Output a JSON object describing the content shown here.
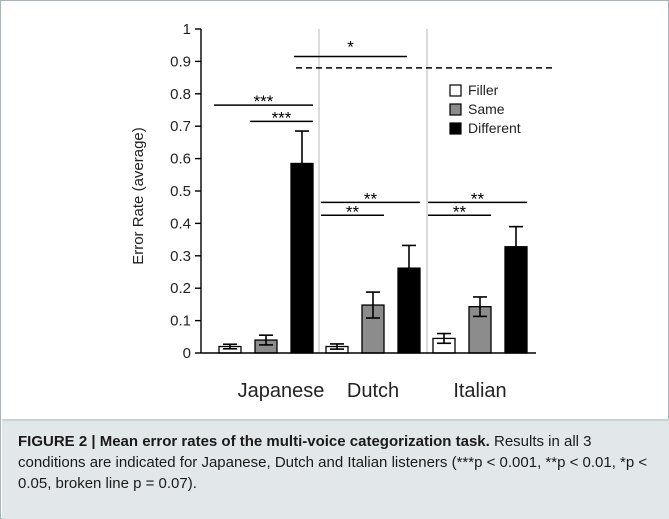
{
  "chart_data": {
    "type": "bar",
    "categories": [
      "Japanese",
      "Dutch",
      "Italian"
    ],
    "series": [
      {
        "name": "Filler",
        "values": [
          0.02,
          0.02,
          0.045
        ],
        "errors": [
          0.007,
          0.008,
          0.015
        ],
        "color": "#ffffff"
      },
      {
        "name": "Same",
        "values": [
          0.04,
          0.148,
          0.143
        ],
        "errors": [
          0.015,
          0.04,
          0.03
        ],
        "color": "#8c8c8c"
      },
      {
        "name": "Different",
        "values": [
          0.585,
          0.262,
          0.328
        ],
        "errors": [
          0.1,
          0.07,
          0.062
        ],
        "color": "#000000"
      }
    ],
    "ylabel": "Error Rate (average)",
    "xlabel": "",
    "ylim": [
      0,
      1
    ],
    "yticks": [
      0,
      0.1,
      0.2,
      0.3,
      0.4,
      0.5,
      0.6,
      0.7,
      0.8,
      0.9,
      1
    ],
    "ytick_labels": [
      "0",
      "0.1",
      "0.2",
      "0.3",
      "0.4",
      "0.5",
      "0.6",
      "0.7",
      "0.8",
      "0.9",
      "1"
    ],
    "legend_position": "top-right",
    "group_separators": true,
    "significance": [
      {
        "group": 0,
        "from": 0,
        "to": 2,
        "y": 0.765,
        "label": "***"
      },
      {
        "group": 0,
        "from": 1,
        "to": 2,
        "y": 0.715,
        "label": "***"
      },
      {
        "group": 1,
        "from": 0,
        "to": 2,
        "y": 0.465,
        "label": "**"
      },
      {
        "group": 1,
        "from": 0,
        "to": 1,
        "y": 0.425,
        "label": "**"
      },
      {
        "group": 2,
        "from": 0,
        "to": 2,
        "y": 0.465,
        "label": "**"
      },
      {
        "group": 2,
        "from": 0,
        "to": 1,
        "y": 0.425,
        "label": "**"
      }
    ],
    "cross_group_significance": [
      {
        "from_group": 0,
        "to_group": 1,
        "y": 0.915,
        "label": "*",
        "style": "solid"
      },
      {
        "from_group": 0,
        "to_group": 2,
        "y": 0.88,
        "label": "",
        "style": "dashed"
      }
    ]
  },
  "caption": {
    "title": "FIGURE 2 | Mean error rates of the multi-voice categorization task.",
    "body": "Results in all 3 conditions are indicated for Japanese, Dutch and Italian listeners (***p < 0.001, **p < 0.01, *p < 0.05, broken line p = 0.07)."
  },
  "colors": {
    "caption_background": "#e2e8ea",
    "border": "#a6b5b8",
    "separator": "#c8c8c8"
  }
}
